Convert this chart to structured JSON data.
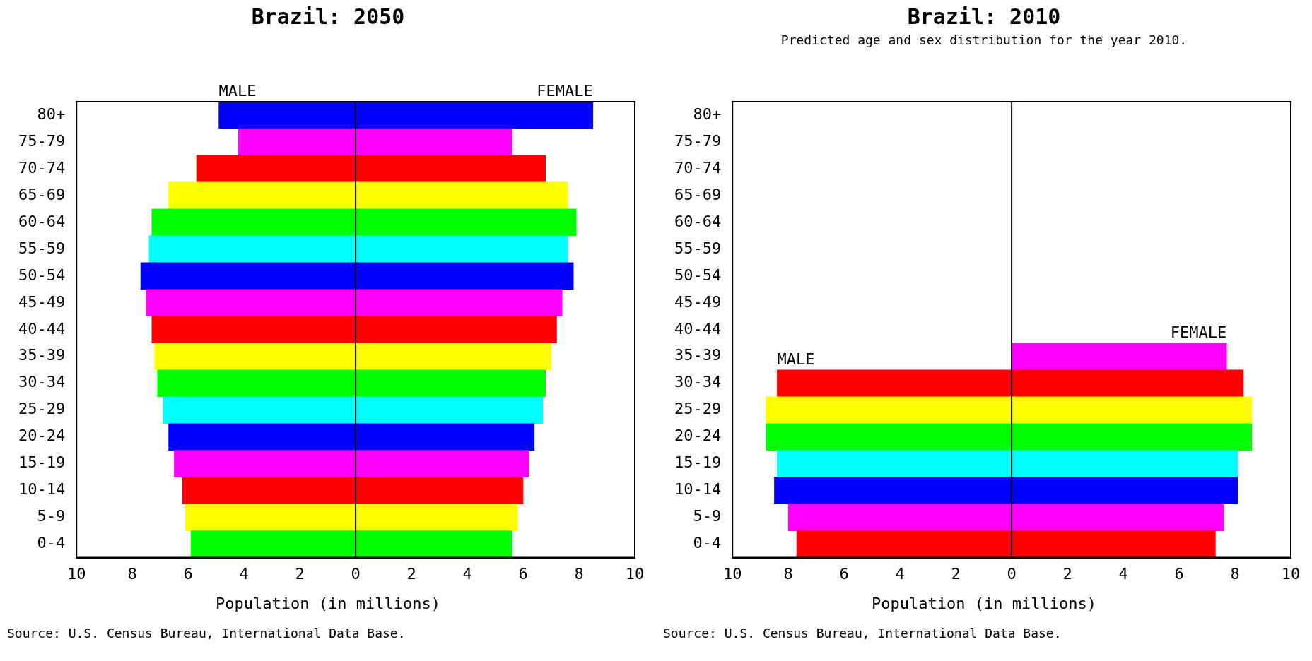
{
  "chart_data": [
    {
      "type": "bar",
      "orientation": "horizontal",
      "stacked": true,
      "title": "Brazil: 2050",
      "xlabel": "Population (in millions)",
      "annotations": [
        "Source: U.S. Census Bureau, International Data Base."
      ],
      "categories": [
        "80+",
        "75-79",
        "70-74",
        "65-69",
        "60-64",
        "55-59",
        "50-54",
        "45-49",
        "40-44",
        "35-39",
        "30-34",
        "25-29",
        "20-24",
        "15-19",
        "10-14",
        "5-9",
        "0-4"
      ],
      "series": [
        {
          "name": "MALE",
          "colors": [
            "#0000ff",
            "#ff00ff",
            "#ff0000",
            "#ffff00",
            "#00ff00",
            "#00ffff",
            "#0000ff",
            "#ff00ff",
            "#ff0000",
            "#ffff00",
            "#00ff00",
            "#00ffff",
            "#0000ff",
            "#ff00ff",
            "#ff0000",
            "#ffff00",
            "#00ff00"
          ],
          "values": [
            -4.9,
            -4.2,
            -5.7,
            -6.7,
            -7.3,
            -7.4,
            -7.7,
            -7.5,
            -7.3,
            -7.2,
            -7.1,
            -6.9,
            -6.7,
            -6.5,
            -6.2,
            -6.1,
            -5.9
          ]
        },
        {
          "name": "FEMALE",
          "colors": [
            "#0000ff",
            "#ff00ff",
            "#ff0000",
            "#ffff00",
            "#00ff00",
            "#00ffff",
            "#0000ff",
            "#ff00ff",
            "#ff0000",
            "#ffff00",
            "#00ff00",
            "#00ffff",
            "#0000ff",
            "#ff00ff",
            "#ff0000",
            "#ffff00",
            "#00ff00"
          ],
          "values": [
            8.5,
            5.6,
            6.8,
            7.6,
            7.9,
            7.6,
            7.8,
            7.4,
            7.2,
            7.0,
            6.8,
            6.7,
            6.4,
            6.2,
            6.0,
            5.8,
            5.6
          ]
        }
      ],
      "xlim": [
        -10,
        10
      ],
      "xticks": [
        {
          "value": -10,
          "label": "10"
        },
        {
          "value": -8,
          "label": "8"
        },
        {
          "value": -6,
          "label": "6"
        },
        {
          "value": -4,
          "label": "4"
        },
        {
          "value": -2,
          "label": "2"
        },
        0,
        2,
        4,
        6,
        8,
        10
      ]
    },
    {
      "type": "bar",
      "orientation": "horizontal",
      "stacked": true,
      "title": "Brazil: 2010",
      "subtitle": "Predicted age and sex distribution for the year 2010.",
      "xlabel": "Population (in millions)",
      "annotations": [
        "Source: U.S. Census Bureau, International Data Base."
      ],
      "categories": [
        "80+",
        "75-79",
        "70-74",
        "65-69",
        "60-64",
        "55-59",
        "50-54",
        "45-49",
        "40-44",
        "35-39",
        "30-34",
        "25-29",
        "20-24",
        "15-19",
        "10-14",
        "5-9",
        "0-4"
      ],
      "series": [
        {
          "name": "MALE",
          "colors": [
            "#00ff00",
            "#00ffff",
            "#0000ff",
            "#ff00ff",
            "#ff0000",
            "#ffff00",
            "#00ff00",
            "#00ffff",
            "#0000ff",
            "#ff00ff",
            "#ff0000",
            "#ffff00",
            "#00ff00",
            "#00ffff",
            "#0000ff",
            "#ff00ff",
            "#ff0000"
          ],
          "values": [
            null,
            null,
            null,
            null,
            null,
            null,
            null,
            null,
            null,
            null,
            -8.4,
            -8.8,
            -8.8,
            -8.4,
            -8.5,
            -8.0,
            -7.7
          ]
        },
        {
          "name": "FEMALE",
          "colors": [
            "#00ff00",
            "#00ffff",
            "#0000ff",
            "#ff00ff",
            "#ff0000",
            "#ffff00",
            "#00ff00",
            "#00ffff",
            "#0000ff",
            "#ff00ff",
            "#ff0000",
            "#ffff00",
            "#00ff00",
            "#00ffff",
            "#0000ff",
            "#ff00ff",
            "#ff0000"
          ],
          "values": [
            null,
            null,
            null,
            null,
            null,
            null,
            null,
            null,
            null,
            7.7,
            8.3,
            8.6,
            8.6,
            8.1,
            8.1,
            7.6,
            7.3
          ]
        }
      ],
      "xlim": [
        -10,
        10
      ],
      "xticks": [
        {
          "value": -10,
          "label": "10"
        },
        {
          "value": -8,
          "label": "8"
        },
        {
          "value": -6,
          "label": "6"
        },
        {
          "value": -4,
          "label": "4"
        },
        {
          "value": -2,
          "label": "2"
        },
        0,
        2,
        4,
        6,
        8,
        10
      ]
    }
  ]
}
